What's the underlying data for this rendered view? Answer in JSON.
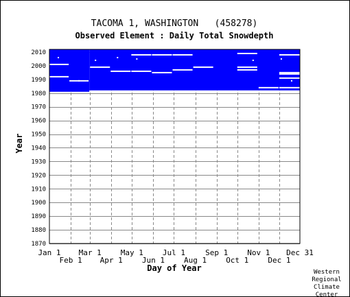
{
  "chart_data": {
    "type": "bar",
    "title": "TACOMA 1, WASHINGTON   (458278)",
    "subtitle": "Observed Element : Daily Total Snowdepth",
    "xlabel": "Day of Year",
    "ylabel": "Year",
    "ylim": [
      1870,
      2012
    ],
    "xlim": [
      1,
      365
    ],
    "y_ticks": [
      1870,
      1880,
      1890,
      1900,
      1910,
      1920,
      1930,
      1940,
      1950,
      1960,
      1970,
      1980,
      1990,
      2000,
      2010
    ],
    "x_ticks_upper": [
      {
        "label": "Jan 1",
        "day": 1
      },
      {
        "label": "Mar 1",
        "day": 60
      },
      {
        "label": "May 1",
        "day": 121
      },
      {
        "label": "Jul 1",
        "day": 182
      },
      {
        "label": "Sep 1",
        "day": 244
      },
      {
        "label": "Nov 1",
        "day": 305
      },
      {
        "label": "Dec 31",
        "day": 365
      }
    ],
    "x_ticks_lower": [
      {
        "label": "Feb 1",
        "day": 32
      },
      {
        "label": "Apr 1",
        "day": 91
      },
      {
        "label": "Jun 1",
        "day": 152
      },
      {
        "label": "Aug 1",
        "day": 213
      },
      {
        "label": "Oct 1",
        "day": 274
      },
      {
        "label": "Dec 1",
        "day": 335
      }
    ],
    "grid": true,
    "series": [
      {
        "color": "#0000ff",
        "coverage": [
          {
            "year_start": 1981,
            "year_end": 2012,
            "day_start": 1,
            "day_end": 59
          },
          {
            "year_start": 1982,
            "year_end": 2012,
            "day_start": 59,
            "day_end": 365
          }
        ]
      }
    ],
    "missing_segments": [
      {
        "year": 2001,
        "day_start": 1,
        "day_end": 29
      },
      {
        "year": 1992,
        "day_start": 1,
        "day_end": 29
      },
      {
        "year": 1989,
        "day_start": 30,
        "day_end": 58
      },
      {
        "year": 1999,
        "day_start": 60,
        "day_end": 89
      },
      {
        "year": 1996,
        "day_start": 90,
        "day_end": 119
      },
      {
        "year": 2008,
        "day_start": 120,
        "day_end": 149
      },
      {
        "year": 1996,
        "day_start": 120,
        "day_end": 149
      },
      {
        "year": 2008,
        "day_start": 150,
        "day_end": 179
      },
      {
        "year": 1995,
        "day_start": 150,
        "day_end": 179
      },
      {
        "year": 2008,
        "day_start": 180,
        "day_end": 209
      },
      {
        "year": 1997,
        "day_start": 180,
        "day_end": 209
      },
      {
        "year": 1999,
        "day_start": 210,
        "day_end": 239
      },
      {
        "year": 2009,
        "day_start": 274,
        "day_end": 303
      },
      {
        "year": 1999,
        "day_start": 274,
        "day_end": 303
      },
      {
        "year": 1997,
        "day_start": 274,
        "day_end": 303
      },
      {
        "year": 1984,
        "day_start": 305,
        "day_end": 334
      },
      {
        "year": 2008,
        "day_start": 335,
        "day_end": 365
      },
      {
        "year": 1995,
        "day_start": 335,
        "day_end": 365
      },
      {
        "year": 1994,
        "day_start": 335,
        "day_end": 365
      },
      {
        "year": 1991,
        "day_start": 335,
        "day_end": 365
      },
      {
        "year": 1984,
        "day_start": 335,
        "day_end": 365
      }
    ],
    "missing_points": [
      {
        "year": 2006,
        "day": 14
      },
      {
        "year": 1989,
        "day": 44
      },
      {
        "year": 2004,
        "day": 68
      },
      {
        "year": 2006,
        "day": 100
      },
      {
        "year": 2005,
        "day": 128
      },
      {
        "year": 2004,
        "day": 297
      },
      {
        "year": 2005,
        "day": 338
      },
      {
        "year": 1989,
        "day": 353
      }
    ]
  },
  "credit": [
    "Western",
    "Regional",
    "Climate",
    "Center"
  ]
}
